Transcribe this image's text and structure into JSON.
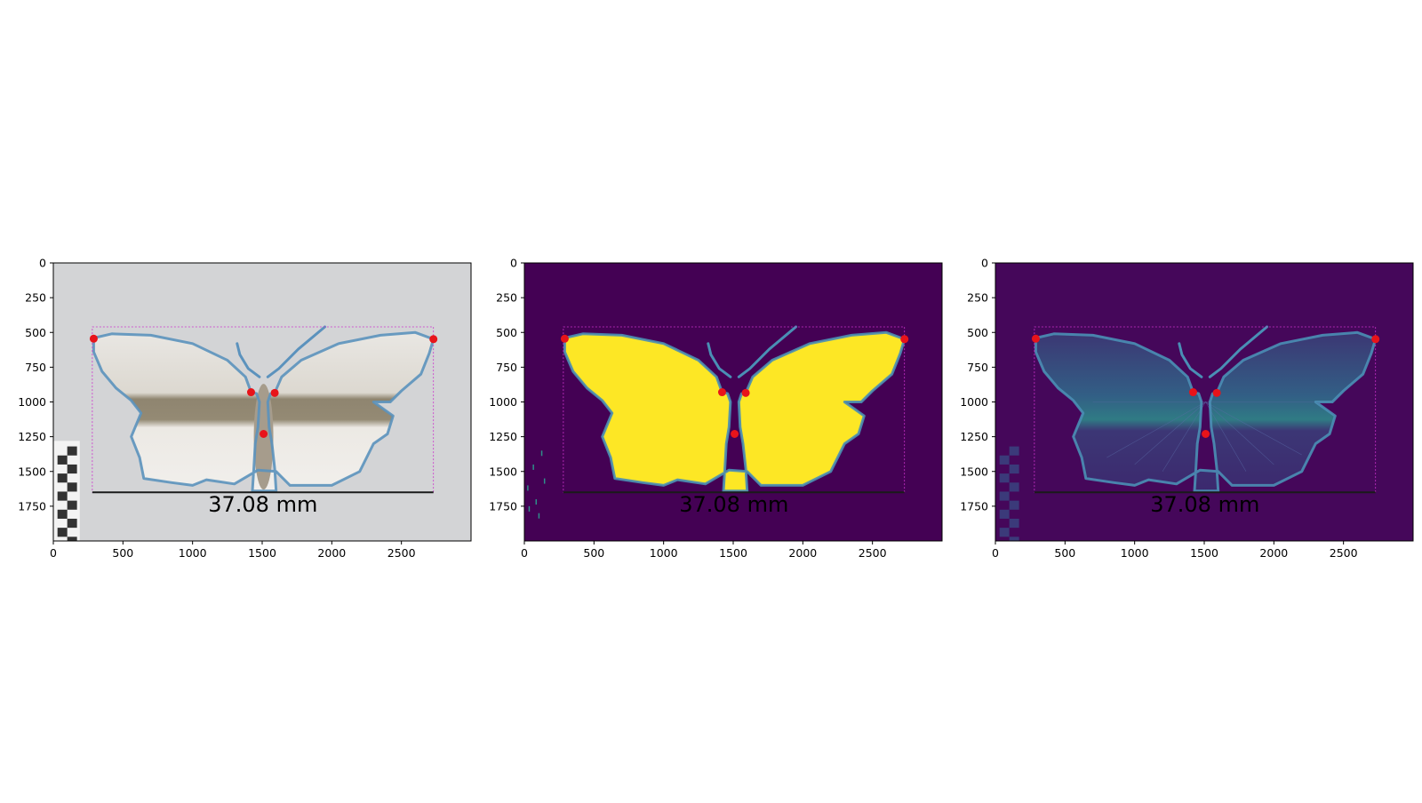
{
  "chart_data": [
    {
      "type": "image",
      "panel": "photograph",
      "x_ticks": [
        0,
        500,
        1000,
        1500,
        2000,
        2500
      ],
      "y_ticks": [
        0,
        250,
        500,
        750,
        1000,
        1250,
        1500,
        1750
      ],
      "xlim": [
        0,
        3000
      ],
      "ylim": [
        2000,
        0
      ],
      "measurement_label": "37.08 mm",
      "landmarks": [
        {
          "x": 290,
          "y": 545
        },
        {
          "x": 2730,
          "y": 548
        },
        {
          "x": 1420,
          "y": 930
        },
        {
          "x": 1590,
          "y": 935
        },
        {
          "x": 1510,
          "y": 1230
        }
      ],
      "bbox_data": {
        "x0": 280,
        "y0": 460,
        "x1": 2730,
        "y1": 1650
      },
      "colors": {
        "background": "#d3d4d6",
        "outline": "#5b92bd",
        "landmark": "#e8141a",
        "bbox": "#cc33cc"
      }
    },
    {
      "type": "image",
      "panel": "segmentation mask",
      "x_ticks": [
        0,
        500,
        1000,
        1500,
        2000,
        2500
      ],
      "y_ticks": [
        0,
        250,
        500,
        750,
        1000,
        1250,
        1500,
        1750
      ],
      "xlim": [
        0,
        3000
      ],
      "ylim": [
        2000,
        0
      ],
      "measurement_label": "37.08 mm",
      "landmarks": [
        {
          "x": 290,
          "y": 545
        },
        {
          "x": 2730,
          "y": 548
        },
        {
          "x": 1420,
          "y": 930
        },
        {
          "x": 1590,
          "y": 935
        },
        {
          "x": 1510,
          "y": 1230
        }
      ],
      "bbox_data": {
        "x0": 280,
        "y0": 460,
        "x1": 2730,
        "y1": 1650
      },
      "colors": {
        "background": "#440154",
        "mask": "#fde725",
        "outline": "#4a8fb5",
        "landmark": "#e8141a",
        "bbox": "#cc33cc"
      }
    },
    {
      "type": "image",
      "panel": "edge map",
      "x_ticks": [
        0,
        500,
        1000,
        1500,
        2000,
        2500
      ],
      "y_ticks": [
        0,
        250,
        500,
        750,
        1000,
        1250,
        1500,
        1750
      ],
      "xlim": [
        0,
        3000
      ],
      "ylim": [
        2000,
        0
      ],
      "measurement_label": "37.08 mm",
      "landmarks": [
        {
          "x": 290,
          "y": 545
        },
        {
          "x": 2730,
          "y": 548
        },
        {
          "x": 1420,
          "y": 930
        },
        {
          "x": 1590,
          "y": 935
        },
        {
          "x": 1510,
          "y": 1230
        }
      ],
      "bbox_data": {
        "x0": 280,
        "y0": 460,
        "x1": 2730,
        "y1": 1650
      },
      "colors": {
        "background": "#45075a",
        "edges": "#3e6d96",
        "outline": "#4a8fb5",
        "landmark": "#e8141a",
        "bbox": "#cc33cc"
      }
    }
  ]
}
